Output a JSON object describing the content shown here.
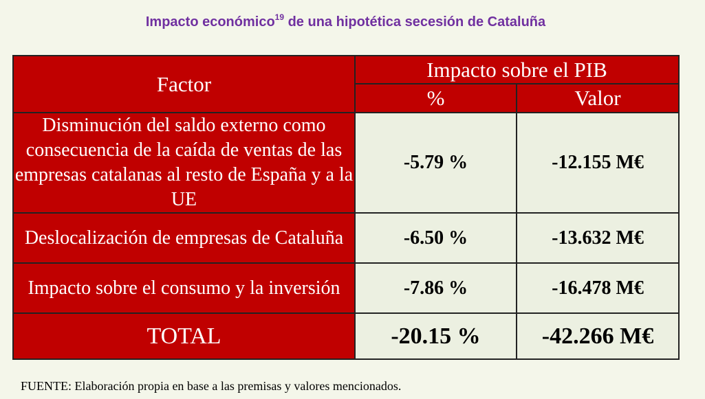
{
  "title": {
    "text_before": "Impacto económico",
    "footnote": "19",
    "text_after": " de una hipotética secesión de Cataluña"
  },
  "table": {
    "header": {
      "factor": "Factor",
      "impact": "Impacto sobre el PIB",
      "percent": "%",
      "value": "Valor"
    },
    "rows": [
      {
        "factor": "Disminución del saldo externo como consecuencia de la caída de ventas de las empresas catalanas al resto de España y a la UE",
        "percent": "-5.79 %",
        "value": "-12.155 M€"
      },
      {
        "factor": "Deslocalización de empresas de Cataluña",
        "percent": "-6.50 %",
        "value": "-13.632 M€"
      },
      {
        "factor": "Impacto sobre el consumo y la inversión",
        "percent": "-7.86 %",
        "value": "-16.478 M€"
      }
    ],
    "total": {
      "label": "TOTAL",
      "percent": "-20.15 %",
      "value": "-42.266 M€"
    }
  },
  "source": "FUENTE: Elaboración propia en base a las premisas y valores mencionados.",
  "colors": {
    "header_red": "#c00000",
    "title_purple": "#7030a0",
    "cell_light": "#ecf0e1"
  }
}
